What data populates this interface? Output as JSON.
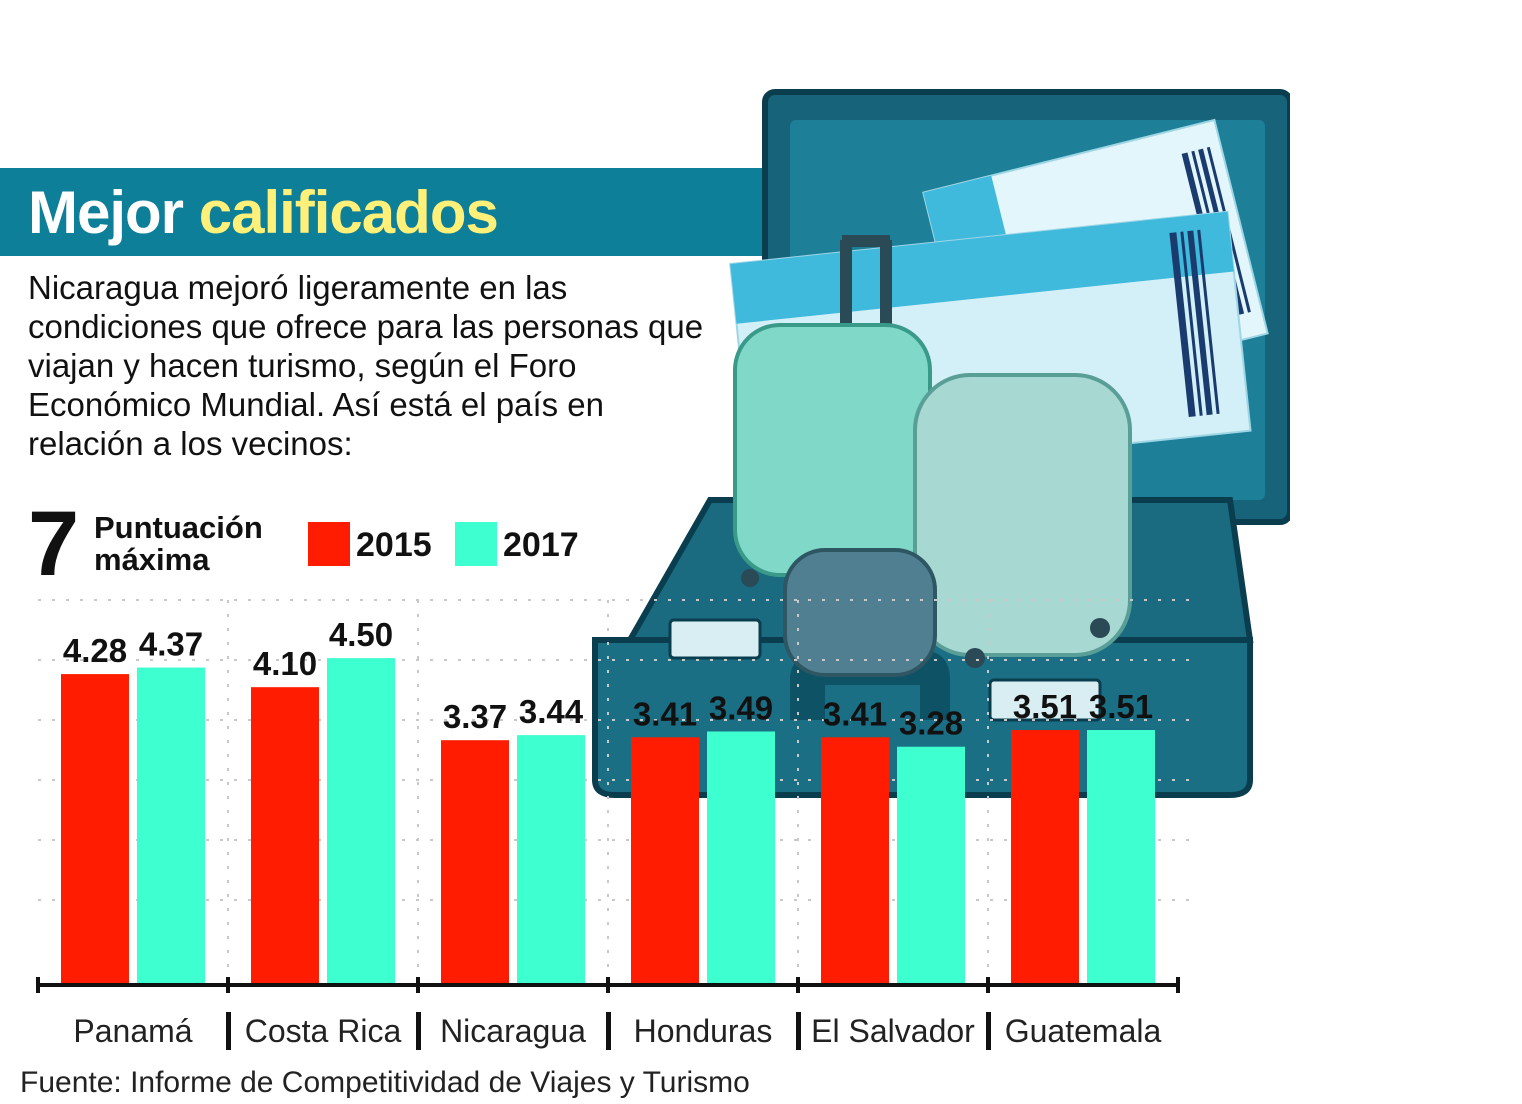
{
  "header": {
    "title_part1": "Mejor",
    "title_part2": "calificados",
    "intro": "Nicaragua mejoró ligeramente en las condiciones que ofrece para las personas que viajan y hacen turismo,  según el Foro Económico Mundial. Así está el país en relación a los vecinos:"
  },
  "max_score": {
    "value": "7",
    "label": "Puntuación máxima"
  },
  "colors": {
    "band": "#0d7f99",
    "title_highlight": "#fff07a",
    "series_2015": "#ff1c00",
    "series_2017": "#3effcf",
    "case": "#1b6f84"
  },
  "illustration_icon": "briefcase-with-luggage-and-tickets-icon",
  "chart_data": {
    "type": "bar",
    "categories": [
      "Panamá",
      "Costa Rica",
      "Nicaragua",
      "Honduras",
      "El Salvador",
      "Guatemala"
    ],
    "series": [
      {
        "name": "2015",
        "values": [
          4.28,
          4.1,
          3.37,
          3.41,
          3.41,
          3.51
        ]
      },
      {
        "name": "2017",
        "values": [
          4.37,
          4.5,
          3.44,
          3.49,
          3.28,
          3.51
        ]
      }
    ],
    "value_labels": [
      [
        "4.28",
        "4.10",
        "3.37",
        "3.41",
        "3.41",
        "3.51"
      ],
      [
        "4.37",
        "4.50",
        "3.44",
        "3.49",
        "3.28",
        "3.51"
      ]
    ],
    "ylim": [
      0,
      5.3
    ],
    "grid": true,
    "legend": "top-left"
  },
  "source": "Fuente:  Informe de Competitividad de Viajes y Turismo"
}
